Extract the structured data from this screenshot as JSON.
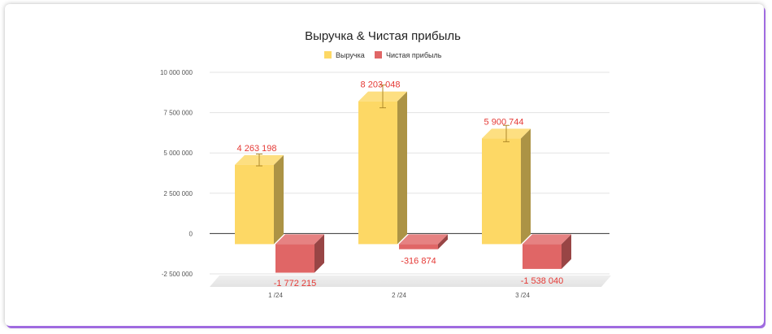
{
  "chart_data": {
    "type": "bar",
    "title": "Выручка & Чистая прибыль",
    "categories": [
      "1 /24",
      "2 /24",
      "3 /24"
    ],
    "series": [
      {
        "name": "Выручка",
        "color": "#fdd865",
        "values": [
          4263198,
          8203048,
          5900744
        ],
        "labels": [
          "4 263 198",
          "8 203 048",
          "5 900 744"
        ]
      },
      {
        "name": "Чистая прибыль",
        "color": "#e06666",
        "values": [
          -1772215,
          -316874,
          -1538040
        ],
        "labels": [
          "-1 772 215",
          "-316 874",
          "-1 538 040"
        ]
      }
    ],
    "ylim": [
      -2500000,
      10000000
    ],
    "yticks": [
      10000000,
      7500000,
      5000000,
      2500000,
      0,
      -2500000
    ],
    "ytick_labels": [
      "10 000 000",
      "7 500 000",
      "5 000 000",
      "2 500 000",
      "0",
      "-2 500 000"
    ],
    "error_bars": true,
    "style": "3d",
    "grid": true,
    "legend": "top",
    "label_color": "#e53935"
  }
}
